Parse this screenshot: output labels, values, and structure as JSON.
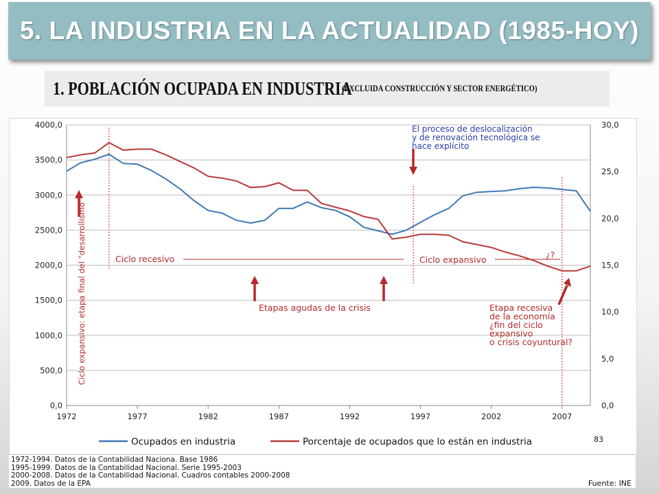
{
  "slide": {
    "title": "5. LA INDUSTRIA EN LA ACTUALIDAD (1985-HOY)",
    "subtitle": "1. POBLACIÓN OCUPADA EN INDUSTRIA",
    "subtitle_note": "(EXCLUIDA CONSTRUCCIÓN Y SECTOR ENERGÉTICO)",
    "page_number": "83"
  },
  "colors": {
    "banner": "#94bdc3",
    "series_blue": "#3f78b2",
    "series_red": "#b73a3a",
    "annotation_red": "#b52a2a",
    "annotation_blue": "#2a3ea8"
  },
  "chart_data": {
    "type": "line",
    "x_ticks": [
      "1972",
      "1977",
      "1982",
      "1987",
      "1992",
      "1997",
      "2002",
      "2007"
    ],
    "y_left_ticks": [
      "0,0",
      "500,0",
      "1000,0",
      "1500,0",
      "2000,0",
      "2500,0",
      "3000,0",
      "3500,0",
      "4000,0"
    ],
    "y_right_ticks": [
      "0,0",
      "5,0",
      "10,0",
      "15,0",
      "20,0",
      "25,0",
      "30,0"
    ],
    "y_left_range": [
      0,
      4000
    ],
    "y_right_range": [
      0,
      30
    ],
    "x_range": [
      1972,
      2009
    ],
    "grid": "horizontal",
    "legend_position": "bottom",
    "series": [
      {
        "name": "Ocupados en industria",
        "axis": "left",
        "x": [
          1972,
          1973,
          1974,
          1975,
          1976,
          1977,
          1978,
          1979,
          1980,
          1981,
          1982,
          1983,
          1984,
          1985,
          1986,
          1987,
          1988,
          1989,
          1990,
          1991,
          1992,
          1993,
          1994,
          1995,
          1996,
          1997,
          1998,
          1999,
          2000,
          2001,
          2002,
          2003,
          2004,
          2005,
          2006,
          2007,
          2008,
          2009
        ],
        "values": [
          3340,
          3460,
          3510,
          3580,
          3450,
          3440,
          3350,
          3230,
          3090,
          2920,
          2780,
          2740,
          2640,
          2600,
          2640,
          2810,
          2810,
          2900,
          2820,
          2780,
          2690,
          2540,
          2490,
          2440,
          2500,
          2610,
          2720,
          2810,
          2990,
          3040,
          3050,
          3060,
          3090,
          3110,
          3100,
          3080,
          3060,
          2770
        ]
      },
      {
        "name": "Porcentaje de ocupados que lo están en industria",
        "axis": "right",
        "x": [
          1972,
          1973,
          1974,
          1975,
          1976,
          1977,
          1978,
          1979,
          1980,
          1981,
          1982,
          1983,
          1984,
          1985,
          1986,
          1987,
          1988,
          1989,
          1990,
          1991,
          1992,
          1993,
          1994,
          1995,
          1996,
          1997,
          1998,
          1999,
          2000,
          2001,
          2002,
          2003,
          2004,
          2005,
          2006,
          2007,
          2008,
          2009
        ],
        "values": [
          26.5,
          26.8,
          27.0,
          28.1,
          27.3,
          27.4,
          27.4,
          26.8,
          26.1,
          25.4,
          24.5,
          24.3,
          24.0,
          23.3,
          23.4,
          23.8,
          23.0,
          23.0,
          21.6,
          21.2,
          20.8,
          20.2,
          19.9,
          17.8,
          18.0,
          18.3,
          18.3,
          18.2,
          17.5,
          17.2,
          16.9,
          16.4,
          16.0,
          15.5,
          14.9,
          14.4,
          14.4,
          14.9
        ]
      }
    ],
    "annotations": {
      "deslocalizacion": [
        "El proceso de deslocalización",
        "y de renovación tecnológica se",
        "hace explícito"
      ],
      "ciclo_recesivo": "Ciclo recesivo",
      "ciclo_expansivo": "Ciclo expansivo",
      "interrogacion": "¿?",
      "etapas_agudas": "Etapas agudas de la crisis",
      "etapa_recesiva": [
        "Etapa recesiva",
        "de la economía",
        "¿fin del ciclo",
        "expansivo",
        "o crisis coyuntural?"
      ],
      "ciclo_expansivo_vertical": "Ciclo expansivo: etapa final del \"desarrollismo\""
    }
  },
  "source": {
    "notes": [
      "1972-1994. Datos de la Contabilidad Naciona. Base 1986",
      "1995-1999. Datos de la Contabilidad Nacional. Serie 1995-2003",
      "2000-2008. Datos de la Contabilidad Nacional. Cuadros contables 2000-2008",
      "2009. Datos de la EPA"
    ],
    "fuente": "Fuente: INE"
  }
}
